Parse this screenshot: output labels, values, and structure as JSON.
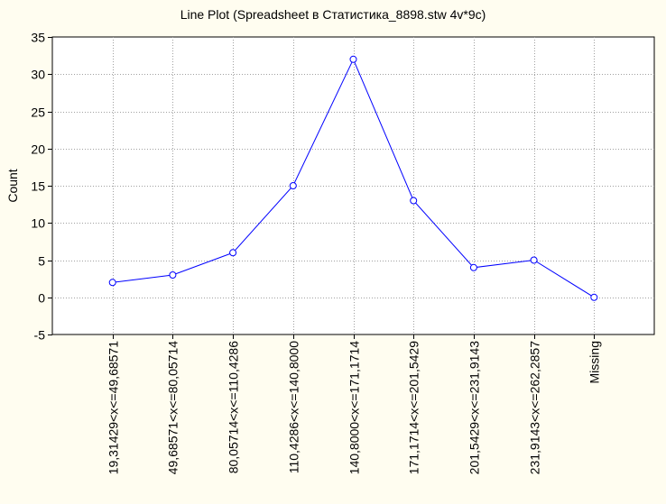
{
  "colors": {
    "background": "#FFFDF0",
    "plot_background": "#FFFFFF",
    "line": "#0000FF",
    "grid": "#A0A0A0"
  },
  "chart_data": {
    "type": "line",
    "title": "Line Plot (Spreadsheet в Статистика_8898.stw 4v*9c)",
    "xlabel": "",
    "ylabel": "Count",
    "categories": [
      "19,31429<x<=49,68571",
      "49,68571<x<=80,05714",
      "80,05714<x<=110,4286",
      "110,4286<x<=140,8000",
      "140,8000<x<=171,1714",
      "171,1714<x<=201,5429",
      "201,5429<x<=231,9143",
      "231,9143<x<=262,2857",
      "Missing"
    ],
    "values": [
      2,
      3,
      6,
      15,
      32,
      13,
      4,
      5,
      0
    ],
    "ylim": [
      -5,
      35
    ],
    "yticks": [
      -5,
      0,
      5,
      10,
      15,
      20,
      25,
      30,
      35
    ],
    "grid": true,
    "marker": "open-circle"
  }
}
